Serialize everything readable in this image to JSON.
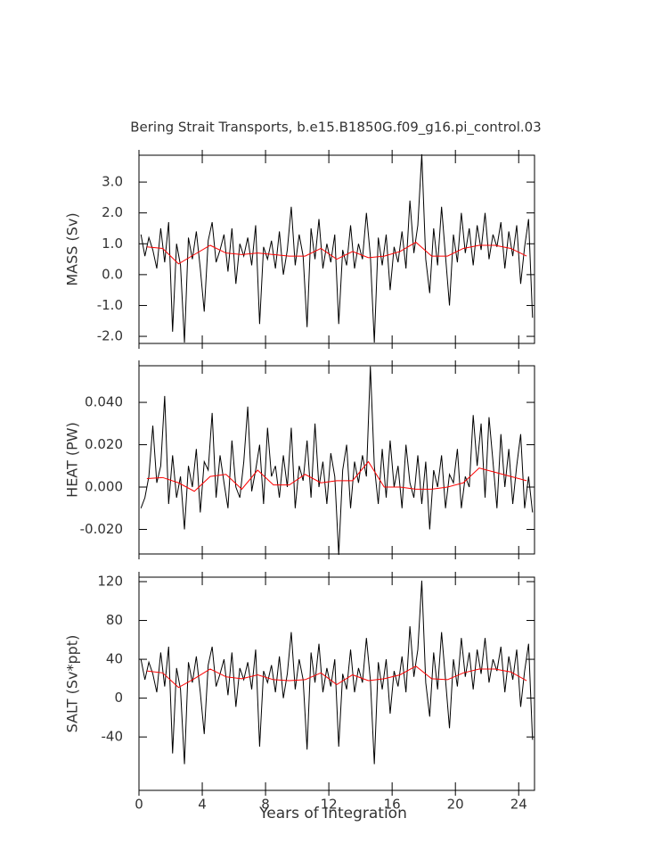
{
  "chart_data": [
    {
      "type": "line",
      "title": "Bering Strait Transports, b.e15.B1850G.f09_g16.pi_control.03",
      "ylabel": "MASS (Sv)",
      "xlim": [
        0,
        25
      ],
      "xticks": [
        0,
        4,
        8,
        12,
        16,
        20,
        24
      ],
      "ylim": [
        -2.23,
        3.87
      ],
      "yticks": [
        {
          "value": -2,
          "label": "-2.0"
        },
        {
          "value": -1,
          "label": "-1.0"
        },
        {
          "value": 0,
          "label": "0.0"
        },
        {
          "value": 1,
          "label": "1.0"
        },
        {
          "value": 2,
          "label": "2.0"
        },
        {
          "value": 3,
          "label": "3.0"
        }
      ],
      "x": [
        0.125,
        0.375,
        0.625,
        0.875,
        1.125,
        1.375,
        1.625,
        1.875,
        2.125,
        2.375,
        2.625,
        2.875,
        3.125,
        3.375,
        3.625,
        3.875,
        4.125,
        4.375,
        4.625,
        4.875,
        5.125,
        5.375,
        5.625,
        5.875,
        6.125,
        6.375,
        6.625,
        6.875,
        7.125,
        7.375,
        7.625,
        7.875,
        8.125,
        8.375,
        8.625,
        8.875,
        9.125,
        9.375,
        9.625,
        9.875,
        10.125,
        10.375,
        10.625,
        10.875,
        11.125,
        11.375,
        11.625,
        11.875,
        12.125,
        12.375,
        12.625,
        12.875,
        13.125,
        13.375,
        13.625,
        13.875,
        14.125,
        14.375,
        14.625,
        14.875,
        15.125,
        15.375,
        15.625,
        15.875,
        16.125,
        16.375,
        16.625,
        16.875,
        17.125,
        17.375,
        17.625,
        17.875,
        18.125,
        18.375,
        18.625,
        18.875,
        19.125,
        19.375,
        19.625,
        19.875,
        20.125,
        20.375,
        20.625,
        20.875,
        21.125,
        21.375,
        21.625,
        21.875,
        22.125,
        22.375,
        22.625,
        22.875,
        23.125,
        23.375,
        23.625,
        23.875,
        24.125,
        24.375,
        24.625,
        24.875
      ],
      "series": [
        {
          "color": "#000000",
          "values": [
            1.3,
            0.6,
            1.2,
            0.8,
            0.2,
            1.5,
            0.4,
            1.7,
            -1.85,
            1.0,
            0.3,
            -2.2,
            1.2,
            0.5,
            1.4,
            0.2,
            -1.2,
            1.1,
            1.7,
            0.4,
            0.8,
            1.3,
            0.1,
            1.5,
            -0.3,
            1.0,
            0.6,
            1.2,
            0.3,
            1.6,
            -1.6,
            0.9,
            0.5,
            1.1,
            0.2,
            1.4,
            0.0,
            0.8,
            2.2,
            0.3,
            1.3,
            0.6,
            -1.7,
            1.5,
            0.5,
            1.8,
            0.2,
            1.0,
            0.4,
            1.3,
            -1.6,
            0.8,
            0.3,
            1.6,
            0.2,
            1.0,
            0.5,
            2.0,
            0.6,
            -2.2,
            1.2,
            0.3,
            1.3,
            -0.5,
            0.9,
            0.4,
            1.4,
            0.2,
            2.4,
            0.7,
            1.6,
            3.9,
            0.5,
            -0.6,
            1.5,
            0.3,
            2.2,
            0.6,
            -1.0,
            1.3,
            0.4,
            2.0,
            0.7,
            1.5,
            0.3,
            1.6,
            0.8,
            2.0,
            0.5,
            1.3,
            0.9,
            1.7,
            0.2,
            1.4,
            0.6,
            1.6,
            -0.3,
            0.9,
            1.8,
            -1.4
          ]
        },
        {
          "color": "#ff0000",
          "x": [
            0.5,
            1.5,
            2.5,
            3.5,
            4.5,
            5.5,
            6.5,
            7.5,
            8.5,
            9.5,
            10.5,
            11.5,
            12.5,
            13.5,
            14.5,
            15.5,
            16.5,
            17.5,
            18.5,
            19.5,
            20.5,
            21.5,
            22.5,
            23.5,
            24.5
          ],
          "values": [
            0.9,
            0.85,
            0.35,
            0.65,
            0.95,
            0.7,
            0.65,
            0.7,
            0.65,
            0.6,
            0.6,
            0.85,
            0.5,
            0.75,
            0.55,
            0.6,
            0.75,
            1.05,
            0.6,
            0.6,
            0.85,
            0.95,
            0.95,
            0.85,
            0.6
          ]
        }
      ]
    },
    {
      "type": "line",
      "ylabel": "HEAT (PW)",
      "xlim": [
        0,
        25
      ],
      "xticks": [
        0,
        4,
        8,
        12,
        16,
        20,
        24
      ],
      "ylim": [
        -0.0316,
        0.0573
      ],
      "yticks": [
        {
          "value": -0.02,
          "label": "-0.020"
        },
        {
          "value": 0,
          "label": "0.000"
        },
        {
          "value": 0.02,
          "label": "0.020"
        },
        {
          "value": 0.04,
          "label": "0.040"
        }
      ],
      "x": [
        0.125,
        0.375,
        0.625,
        0.875,
        1.125,
        1.375,
        1.625,
        1.875,
        2.125,
        2.375,
        2.625,
        2.875,
        3.125,
        3.375,
        3.625,
        3.875,
        4.125,
        4.375,
        4.625,
        4.875,
        5.125,
        5.375,
        5.625,
        5.875,
        6.125,
        6.375,
        6.625,
        6.875,
        7.125,
        7.375,
        7.625,
        7.875,
        8.125,
        8.375,
        8.625,
        8.875,
        9.125,
        9.375,
        9.625,
        9.875,
        10.125,
        10.375,
        10.625,
        10.875,
        11.125,
        11.375,
        11.625,
        11.875,
        12.125,
        12.375,
        12.625,
        12.875,
        13.125,
        13.375,
        13.625,
        13.875,
        14.125,
        14.375,
        14.625,
        14.875,
        15.125,
        15.375,
        15.625,
        15.875,
        16.125,
        16.375,
        16.625,
        16.875,
        17.125,
        17.375,
        17.625,
        17.875,
        18.125,
        18.375,
        18.625,
        18.875,
        19.125,
        19.375,
        19.625,
        19.875,
        20.125,
        20.375,
        20.625,
        20.875,
        21.125,
        21.375,
        21.625,
        21.875,
        22.125,
        22.375,
        22.625,
        22.875,
        23.125,
        23.375,
        23.625,
        23.875,
        24.125,
        24.375,
        24.625,
        24.875
      ],
      "series": [
        {
          "color": "#000000",
          "values": [
            -0.01,
            -0.005,
            0.005,
            0.029,
            0.002,
            0.01,
            0.043,
            -0.008,
            0.015,
            -0.005,
            0.005,
            -0.02,
            0.01,
            0.0,
            0.018,
            -0.012,
            0.012,
            0.008,
            0.035,
            -0.005,
            0.015,
            0.002,
            -0.01,
            0.022,
            0.0,
            -0.005,
            0.012,
            0.038,
            -0.002,
            0.008,
            0.02,
            -0.008,
            0.028,
            0.005,
            0.01,
            -0.005,
            0.015,
            0.0,
            0.028,
            -0.01,
            0.01,
            0.003,
            0.022,
            -0.005,
            0.03,
            0.0,
            0.012,
            -0.008,
            0.016,
            0.005,
            -0.032,
            0.008,
            0.02,
            -0.01,
            0.012,
            0.002,
            0.015,
            0.005,
            0.057,
            0.01,
            -0.008,
            0.018,
            -0.005,
            0.022,
            0.0,
            0.01,
            -0.01,
            0.02,
            0.002,
            -0.005,
            0.015,
            -0.008,
            0.012,
            -0.02,
            0.008,
            0.0,
            0.015,
            -0.01,
            0.006,
            0.002,
            0.018,
            -0.01,
            0.005,
            0.0,
            0.034,
            0.01,
            0.03,
            -0.005,
            0.033,
            0.012,
            -0.01,
            0.025,
            0.0,
            0.018,
            -0.008,
            0.01,
            0.025,
            -0.01,
            0.005,
            -0.012
          ]
        },
        {
          "color": "#ff0000",
          "x": [
            0.5,
            1.5,
            2.5,
            3.5,
            4.5,
            5.5,
            6.5,
            7.5,
            8.5,
            9.5,
            10.5,
            11.5,
            12.5,
            13.5,
            14.5,
            15.5,
            16.5,
            17.5,
            18.5,
            19.5,
            20.5,
            21.5,
            22.5,
            23.5,
            24.5
          ],
          "values": [
            0.004,
            0.0045,
            0.002,
            -0.002,
            0.005,
            0.006,
            -0.001,
            0.008,
            0.001,
            0.001,
            0.006,
            0.002,
            0.003,
            0.003,
            0.012,
            0.0,
            0.0,
            -0.001,
            -0.001,
            0.0,
            0.002,
            0.009,
            0.007,
            0.005,
            0.003
          ]
        }
      ]
    },
    {
      "type": "line",
      "ylabel": "SALT (Sv*ppt)",
      "xlabel": "Years of Integration",
      "xlim": [
        0,
        25
      ],
      "xticks": [
        0,
        4,
        8,
        12,
        16,
        20,
        24
      ],
      "ylim": [
        -95,
        124.6
      ],
      "yticks": [
        -40,
        0,
        40,
        80,
        120
      ],
      "x": [
        0.125,
        0.375,
        0.625,
        0.875,
        1.125,
        1.375,
        1.625,
        1.875,
        2.125,
        2.375,
        2.625,
        2.875,
        3.125,
        3.375,
        3.625,
        3.875,
        4.125,
        4.375,
        4.625,
        4.875,
        5.125,
        5.375,
        5.625,
        5.875,
        6.125,
        6.375,
        6.625,
        6.875,
        7.125,
        7.375,
        7.625,
        7.875,
        8.125,
        8.375,
        8.625,
        8.875,
        9.125,
        9.375,
        9.625,
        9.875,
        10.125,
        10.375,
        10.625,
        10.875,
        11.125,
        11.375,
        11.625,
        11.875,
        12.125,
        12.375,
        12.625,
        12.875,
        13.125,
        13.375,
        13.625,
        13.875,
        14.125,
        14.375,
        14.625,
        14.875,
        15.125,
        15.375,
        15.625,
        15.875,
        16.125,
        16.375,
        16.625,
        16.875,
        17.125,
        17.375,
        17.625,
        17.875,
        18.125,
        18.375,
        18.625,
        18.875,
        19.125,
        19.375,
        19.625,
        19.875,
        20.125,
        20.375,
        20.625,
        20.875,
        21.125,
        21.375,
        21.625,
        21.875,
        22.125,
        22.375,
        22.625,
        22.875,
        23.125,
        23.375,
        23.625,
        23.875,
        24.125,
        24.375,
        24.625,
        24.875
      ],
      "series": [
        {
          "color": "#000000",
          "values": [
            40,
            19,
            37,
            25,
            6,
            47,
            12,
            53,
            -57,
            31,
            9,
            -68,
            37,
            16,
            43,
            6,
            -37,
            34,
            53,
            12,
            25,
            40,
            3,
            47,
            -9,
            31,
            19,
            37,
            9,
            50,
            -50,
            28,
            16,
            34,
            6,
            43,
            0,
            25,
            68,
            9,
            40,
            19,
            -53,
            47,
            16,
            56,
            6,
            31,
            12,
            40,
            -50,
            25,
            9,
            50,
            6,
            31,
            16,
            62,
            19,
            -68,
            37,
            9,
            40,
            -16,
            28,
            12,
            43,
            6,
            74,
            22,
            50,
            121,
            16,
            -19,
            47,
            9,
            68,
            19,
            -31,
            40,
            12,
            62,
            22,
            47,
            9,
            50,
            25,
            62,
            16,
            40,
            28,
            53,
            6,
            43,
            19,
            50,
            -9,
            28,
            56,
            -43
          ]
        },
        {
          "color": "#ff0000",
          "x": [
            0.5,
            1.5,
            2.5,
            3.5,
            4.5,
            5.5,
            6.5,
            7.5,
            8.5,
            9.5,
            10.5,
            11.5,
            12.5,
            13.5,
            14.5,
            15.5,
            16.5,
            17.5,
            18.5,
            19.5,
            20.5,
            21.5,
            22.5,
            23.5,
            24.5
          ],
          "values": [
            28,
            26,
            11,
            20,
            30,
            22,
            20,
            24,
            19,
            18,
            19,
            26,
            14,
            24,
            18,
            20,
            24,
            33,
            20,
            19,
            26,
            30,
            30,
            27,
            18
          ]
        }
      ]
    }
  ]
}
